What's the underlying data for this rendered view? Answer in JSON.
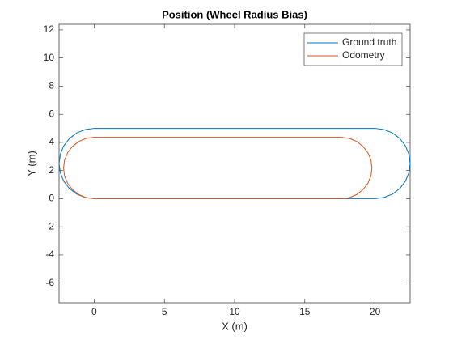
{
  "chart_data": {
    "type": "line",
    "title": "Position (Wheel Radius Bias)",
    "xlabel": "X (m)",
    "ylabel": "Y (m)",
    "xlim": [
      -2.5,
      22.5
    ],
    "ylim": [
      -7.4,
      12.4
    ],
    "xticks": [
      0,
      5,
      10,
      15,
      20
    ],
    "yticks": [
      -6,
      -4,
      -2,
      0,
      2,
      4,
      6,
      8,
      10,
      12
    ],
    "legend": "upper right",
    "series": [
      {
        "name": "Ground truth",
        "color": "#0072BD",
        "x": [
          0,
          20,
          20.65,
          21.25,
          21.77,
          22.17,
          22.41,
          22.5,
          22.41,
          22.17,
          21.77,
          21.25,
          20.65,
          20,
          0,
          -0.65,
          -1.25,
          -1.77,
          -2.17,
          -2.41,
          -2.5,
          -2.41,
          -2.17,
          -1.77,
          -1.25,
          -0.65,
          0
        ],
        "y": [
          0,
          0,
          0.09,
          0.33,
          0.73,
          1.25,
          1.85,
          2.5,
          3.15,
          3.75,
          4.27,
          4.67,
          4.91,
          5,
          5,
          4.91,
          4.67,
          4.27,
          3.75,
          3.15,
          2.5,
          1.85,
          1.25,
          0.73,
          0.33,
          0.09,
          0
        ]
      },
      {
        "name": "Odometry",
        "color": "#D95319",
        "x": [
          0,
          17.6,
          18.16,
          18.69,
          19.14,
          19.49,
          19.71,
          19.78,
          19.71,
          19.49,
          19.14,
          18.69,
          18.16,
          17.6,
          0,
          -0.56,
          -1.09,
          -1.54,
          -1.89,
          -2.11,
          -2.18,
          -2.11,
          -1.89,
          -1.54,
          -1.09,
          -0.56,
          0
        ],
        "y": [
          0,
          0,
          0.07,
          0.29,
          0.64,
          1.09,
          1.62,
          2.18,
          2.74,
          3.27,
          3.72,
          4.07,
          4.29,
          4.36,
          4.36,
          4.29,
          4.07,
          3.72,
          3.27,
          2.74,
          2.18,
          1.62,
          1.09,
          0.64,
          0.29,
          0.07,
          0
        ]
      }
    ]
  }
}
